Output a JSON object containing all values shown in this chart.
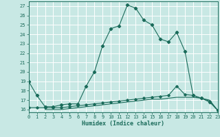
{
  "xlabel": "Humidex (Indice chaleur)",
  "bg_color": "#c8e8e4",
  "grid_color": "#ffffff",
  "line_color": "#1a6b5a",
  "spine_color": "#1a6b5a",
  "xlim": [
    0,
    23
  ],
  "ylim": [
    15.7,
    27.5
  ],
  "yticks": [
    16,
    17,
    18,
    19,
    20,
    21,
    22,
    23,
    24,
    25,
    26,
    27
  ],
  "xticks": [
    0,
    1,
    2,
    3,
    4,
    5,
    6,
    7,
    8,
    9,
    10,
    11,
    12,
    13,
    14,
    15,
    16,
    17,
    18,
    19,
    20,
    21,
    22,
    23
  ],
  "curve1_x": [
    0,
    1,
    2,
    3,
    4,
    5,
    6,
    7,
    8,
    9,
    10,
    11,
    12,
    13,
    14,
    15,
    16,
    17,
    18,
    19,
    20,
    21,
    22,
    23
  ],
  "curve1_y": [
    19.0,
    17.5,
    16.3,
    16.3,
    16.5,
    16.6,
    16.6,
    18.5,
    20.0,
    22.8,
    24.6,
    24.9,
    27.1,
    26.8,
    25.5,
    25.0,
    23.5,
    23.2,
    24.2,
    22.2,
    17.5,
    17.2,
    16.8,
    15.9
  ],
  "curve2_x": [
    0,
    1,
    2,
    3,
    4,
    5,
    6,
    7,
    8,
    9,
    10,
    11,
    12,
    13,
    14,
    15,
    16,
    17,
    18,
    19,
    20,
    21,
    22,
    23
  ],
  "curve2_y": [
    16.2,
    16.2,
    16.2,
    16.2,
    16.2,
    16.3,
    16.4,
    16.5,
    16.6,
    16.7,
    16.8,
    16.9,
    17.0,
    17.1,
    17.2,
    17.3,
    17.4,
    17.5,
    18.5,
    17.6,
    17.5,
    17.2,
    16.9,
    15.9
  ],
  "curve3_x": [
    2,
    3,
    4,
    5,
    6,
    7,
    8,
    9,
    10,
    11,
    12,
    13,
    14,
    15,
    16,
    17,
    18,
    19,
    20,
    21,
    22,
    23
  ],
  "curve3_y": [
    16.0,
    16.0,
    16.0,
    16.1,
    16.2,
    16.3,
    16.4,
    16.5,
    16.6,
    16.7,
    16.8,
    16.9,
    17.0,
    17.1,
    17.1,
    17.2,
    17.3,
    17.3,
    17.3,
    17.2,
    17.0,
    15.9
  ],
  "tick_fontsize": 5.0,
  "xlabel_fontsize": 6.0,
  "marker_size": 2.2,
  "linewidth": 0.8
}
